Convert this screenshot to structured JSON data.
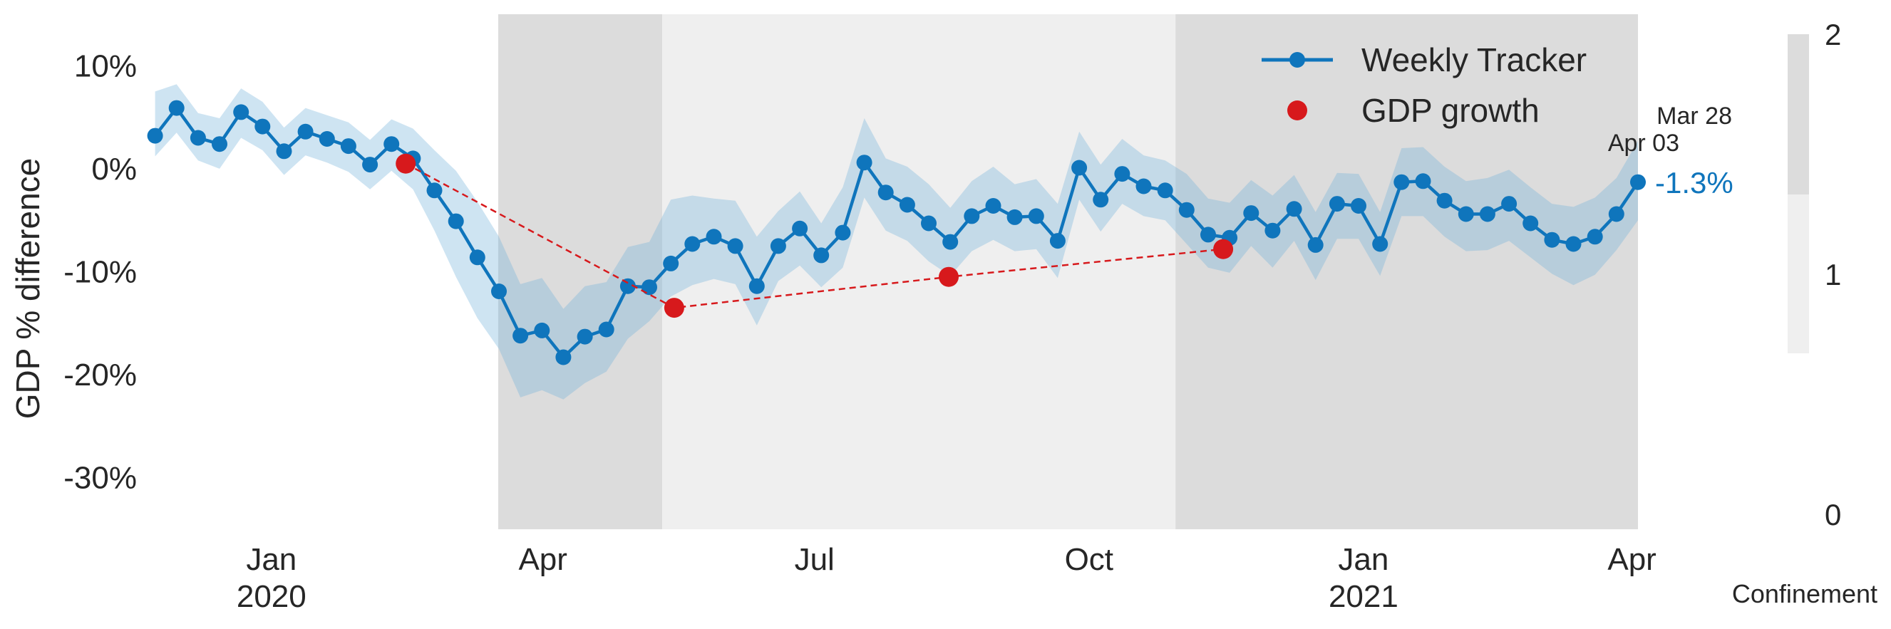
{
  "chart_data": {
    "type": "line",
    "title": "",
    "ylabel": "GDP % difference",
    "xlabel": "",
    "ylim": [
      -35,
      15
    ],
    "xlim": [
      "2019-11-20",
      "2021-04-03"
    ],
    "y_ticks": [
      10,
      0,
      -10,
      -20,
      -30
    ],
    "y_tick_labels": [
      "10%",
      "0%",
      "-10%",
      "-20%",
      "-30%"
    ],
    "x_ticks": [
      {
        "date": "2020-01-01",
        "month": "Jan",
        "year": "2020"
      },
      {
        "date": "2020-04-01",
        "month": "Apr",
        "year": ""
      },
      {
        "date": "2020-07-01",
        "month": "Jul",
        "year": ""
      },
      {
        "date": "2020-10-01",
        "month": "Oct",
        "year": ""
      },
      {
        "date": "2021-01-01",
        "month": "Jan",
        "year": "2021"
      },
      {
        "date": "2021-04-01",
        "month": "Apr",
        "year": ""
      }
    ],
    "grid": false,
    "legend_position": "top-right",
    "series": [
      {
        "name": "Weekly Tracker",
        "color": "#0f75bc",
        "band_color": "#76b3db",
        "values": [
          3.2,
          5.9,
          3.0,
          2.4,
          5.5,
          4.1,
          1.7,
          3.6,
          2.9,
          2.2,
          0.4,
          2.4,
          1.0,
          -2.1,
          -5.1,
          -8.6,
          -11.9,
          -16.2,
          -15.7,
          -18.3,
          -16.3,
          -15.6,
          -11.4,
          -11.5,
          -9.2,
          -7.3,
          -6.6,
          -7.5,
          -11.4,
          -7.5,
          -5.8,
          -8.4,
          -6.2,
          0.6,
          -2.3,
          -3.5,
          -5.3,
          -7.1,
          -4.6,
          -3.6,
          -4.7,
          -4.6,
          -7.0,
          0.1,
          -3.0,
          -0.5,
          -1.7,
          -2.1,
          -4.0,
          -6.4,
          -6.7,
          -4.3,
          -6.0,
          -3.9,
          -7.4,
          -3.4,
          -3.6,
          -7.3,
          -1.3,
          -1.2,
          -3.1,
          -4.4,
          -4.4,
          -3.4,
          -5.3,
          -6.9,
          -7.3,
          -6.6,
          -4.4,
          -1.3
        ],
        "lower": [
          1.2,
          3.5,
          0.8,
          0.0,
          3.0,
          1.8,
          -0.6,
          1.3,
          0.6,
          -0.3,
          -2.0,
          -0.2,
          -2.0,
          -6.0,
          -10.5,
          -14.5,
          -17.5,
          -22.2,
          -21.5,
          -22.4,
          -20.8,
          -19.7,
          -16.5,
          -14.8,
          -12.4,
          -11.3,
          -10.7,
          -11.2,
          -15.2,
          -10.9,
          -9.4,
          -11.5,
          -9.6,
          -2.8,
          -6.0,
          -7.0,
          -9.0,
          -10.4,
          -8.0,
          -6.9,
          -8.0,
          -7.8,
          -10.6,
          -3.0,
          -6.1,
          -3.4,
          -4.6,
          -5.0,
          -7.3,
          -9.6,
          -10.1,
          -7.5,
          -9.6,
          -7.0,
          -10.8,
          -6.8,
          -6.8,
          -10.4,
          -4.6,
          -4.6,
          -6.6,
          -8.0,
          -7.9,
          -7.0,
          -8.6,
          -10.2,
          -11.3,
          -10.3,
          -7.9,
          -5.0
        ],
        "upper": [
          7.5,
          8.2,
          5.4,
          4.9,
          7.8,
          6.5,
          4.0,
          5.9,
          5.2,
          4.5,
          2.8,
          4.8,
          3.9,
          1.8,
          -0.2,
          -3.2,
          -6.6,
          -11.2,
          -10.6,
          -13.6,
          -11.4,
          -11.0,
          -7.6,
          -7.1,
          -3.0,
          -2.6,
          -2.9,
          -3.1,
          -6.6,
          -4.1,
          -2.2,
          -5.3,
          -1.8,
          4.9,
          1.0,
          0.2,
          -1.5,
          -3.8,
          -1.2,
          0.2,
          -1.5,
          -1.0,
          -3.4,
          3.6,
          0.4,
          2.9,
          1.3,
          0.8,
          -0.5,
          -2.9,
          -3.3,
          -1.1,
          -2.6,
          -0.6,
          -4.2,
          -0.4,
          -0.5,
          -4.2,
          2.0,
          2.1,
          0.2,
          -1.2,
          -0.9,
          -0.1,
          -1.8,
          -3.4,
          -3.7,
          -2.8,
          -0.9,
          2.7
        ]
      },
      {
        "name": "GDP growth",
        "color": "#d7191c",
        "x": [
          "2020-02-15",
          "2020-05-15",
          "2020-08-15",
          "2020-11-15"
        ],
        "values": [
          0.5,
          -13.5,
          -10.5,
          -7.8
        ]
      }
    ],
    "shaded_regions": [
      {
        "start": "2020-03-17",
        "end": "2020-05-11",
        "level": 2
      },
      {
        "start": "2020-05-11",
        "end": "2020-10-30",
        "level": 1
      },
      {
        "start": "2020-10-30",
        "end": "2021-04-03",
        "level": 2
      }
    ],
    "annotation": {
      "date_line1": "Mar 28",
      "date_line2": "Apr 03",
      "value_label": "-1.3%"
    },
    "colorbar": {
      "title": "Confinement",
      "ticks": [
        "2",
        "1",
        "0"
      ],
      "colors": {
        "level_2": "#dcdcdc",
        "level_1": "#efefef",
        "level_0": "#ffffff"
      }
    }
  }
}
